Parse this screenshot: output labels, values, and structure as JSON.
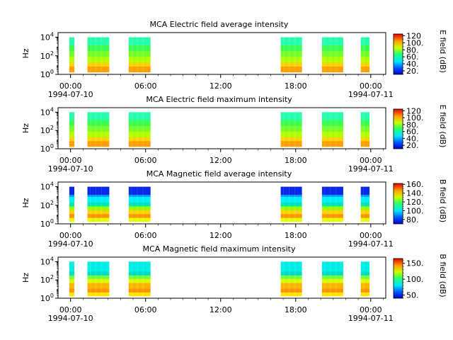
{
  "chart_data": [
    {
      "type": "heatmap",
      "title": "MCA  Electric field average intensity",
      "ylabel": "Hz",
      "colorbar_label": "E field (dB)",
      "colorbar_ticks": [
        "20.",
        "40.",
        "60.",
        "80.",
        "100.",
        "120"
      ],
      "colorbar_range": [
        10,
        125
      ],
      "y_tick_labels": [
        "10^0",
        "10^2",
        "10^4"
      ],
      "x_tick_labels": [
        "00:00",
        "06:00",
        "12:00",
        "18:00",
        "00:00"
      ],
      "x_date_labels": [
        {
          "tick": 0,
          "text": "1994-07-10"
        },
        {
          "tick": 4,
          "text": "1994-07-11"
        }
      ],
      "x_range_hours": [
        -1,
        25.2
      ],
      "y_range_log10": [
        0,
        4.5
      ],
      "palette": "rainbow-low-intensity-at-high-freq",
      "segments": [
        {
          "start": -0.1,
          "end": 0.3
        },
        {
          "start": 1.35,
          "end": 3.1
        },
        {
          "start": 4.65,
          "end": 6.4
        },
        {
          "start": 16.8,
          "end": 18.5
        },
        {
          "start": 20.1,
          "end": 21.8
        },
        {
          "start": 23.2,
          "end": 23.9
        }
      ]
    },
    {
      "type": "heatmap",
      "title": "MCA  Electric field maximum intensity",
      "ylabel": "Hz",
      "colorbar_label": "E field (dB)",
      "colorbar_ticks": [
        "20.",
        "40.",
        "60.",
        "80.",
        "100.",
        "120"
      ],
      "colorbar_range": [
        10,
        125
      ],
      "y_tick_labels": [
        "10^0",
        "10^2",
        "10^4"
      ],
      "x_tick_labels": [
        "00:00",
        "06:00",
        "12:00",
        "18:00",
        "00:00"
      ],
      "x_date_labels": [
        {
          "tick": 0,
          "text": "1994-07-10"
        },
        {
          "tick": 4,
          "text": "1994-07-11"
        }
      ],
      "x_range_hours": [
        -1,
        25.2
      ],
      "y_range_log10": [
        0,
        4.5
      ],
      "palette": "rainbow-low-intensity-at-high-freq",
      "segments": [
        {
          "start": -0.1,
          "end": 0.3
        },
        {
          "start": 1.35,
          "end": 3.1
        },
        {
          "start": 4.65,
          "end": 6.4
        },
        {
          "start": 16.8,
          "end": 18.5
        },
        {
          "start": 20.1,
          "end": 21.8
        },
        {
          "start": 23.2,
          "end": 23.9
        }
      ]
    },
    {
      "type": "heatmap",
      "title": "MCA  Magnetic field average intensity",
      "ylabel": "Hz",
      "colorbar_label": "B field (dB)",
      "colorbar_ticks": [
        "80.",
        "100.",
        "120.",
        "140.",
        "160."
      ],
      "colorbar_range": [
        70,
        162
      ],
      "y_tick_labels": [
        "10^0",
        "10^2",
        "10^4"
      ],
      "x_tick_labels": [
        "00:00",
        "06:00",
        "12:00",
        "18:00",
        "00:00"
      ],
      "x_date_labels": [
        {
          "tick": 0,
          "text": "1994-07-10"
        },
        {
          "tick": 4,
          "text": "1994-07-11"
        }
      ],
      "x_range_hours": [
        -1,
        25.2
      ],
      "y_range_log10": [
        0,
        4.5
      ],
      "palette": "banded-blue-top",
      "segments": [
        {
          "start": -0.1,
          "end": 0.3
        },
        {
          "start": 1.35,
          "end": 3.1
        },
        {
          "start": 4.65,
          "end": 6.4
        },
        {
          "start": 16.8,
          "end": 18.5
        },
        {
          "start": 20.1,
          "end": 21.8
        },
        {
          "start": 23.2,
          "end": 23.9
        }
      ]
    },
    {
      "type": "heatmap",
      "title": "MCA  Magnetic field maximum intensity",
      "ylabel": "Hz",
      "colorbar_label": "B field (dB)",
      "colorbar_ticks": [
        "50.",
        "100.",
        "150."
      ],
      "colorbar_range": [
        40,
        165
      ],
      "y_tick_labels": [
        "10^0",
        "10^2",
        "10^4"
      ],
      "x_tick_labels": [
        "00:00",
        "06:00",
        "12:00",
        "18:00",
        "00:00"
      ],
      "x_date_labels": [
        {
          "tick": 0,
          "text": "1994-07-10"
        },
        {
          "tick": 4,
          "text": "1994-07-11"
        }
      ],
      "x_range_hours": [
        -1,
        25.2
      ],
      "y_range_log10": [
        0,
        4.5
      ],
      "palette": "banded-cyan-top",
      "segments": [
        {
          "start": -0.1,
          "end": 0.3
        },
        {
          "start": 1.35,
          "end": 3.1
        },
        {
          "start": 4.65,
          "end": 6.4
        },
        {
          "start": 16.8,
          "end": 18.5
        },
        {
          "start": 20.1,
          "end": 21.8
        },
        {
          "start": 23.2,
          "end": 23.9
        }
      ]
    }
  ]
}
